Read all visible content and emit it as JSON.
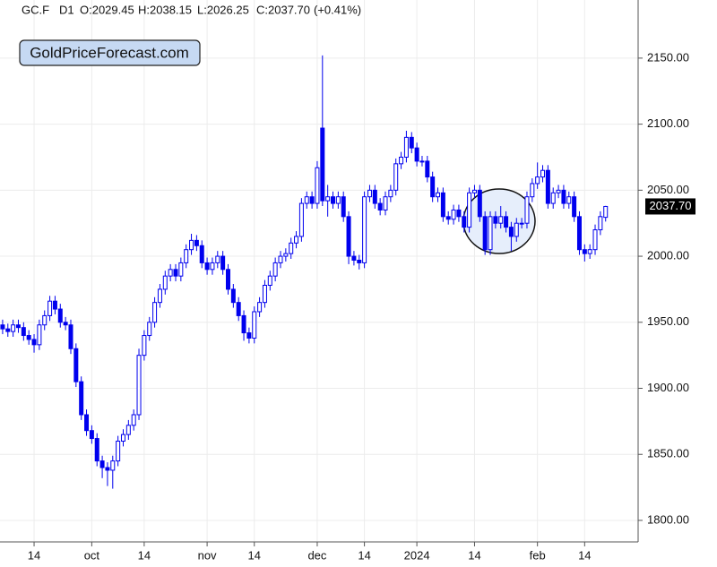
{
  "chart_data": {
    "type": "candlestick",
    "header": {
      "symbol": "GC.F",
      "timeframe": "D1",
      "open": "O:2029.45",
      "high": "H:2038.15",
      "low": "L:2026.25",
      "close": "C:2037.70",
      "change": "(+0.41%)"
    },
    "logo": "GoldPriceForecast.com",
    "last_price_label": "2037.70",
    "color": "#0000ee",
    "grid": true,
    "xlim": [
      -0.5,
      121.2
    ],
    "xticks": [
      {
        "value": 6,
        "label": "14"
      },
      {
        "value": 17,
        "label": "oct"
      },
      {
        "value": 27,
        "label": "14"
      },
      {
        "value": 39,
        "label": "nov"
      },
      {
        "value": 48,
        "label": "14"
      },
      {
        "value": 60,
        "label": "dec"
      },
      {
        "value": 69,
        "label": "14"
      },
      {
        "value": 79,
        "label": "2024"
      },
      {
        "value": 90,
        "label": "14"
      },
      {
        "value": 102,
        "label": "feb"
      },
      {
        "value": 111,
        "label": "14"
      }
    ],
    "ylim": [
      1783.7,
      2194
    ],
    "yticks": [
      {
        "value": 1800,
        "label": "1800.00"
      },
      {
        "value": 1850,
        "label": "1850.00"
      },
      {
        "value": 1900,
        "label": "1900.00"
      },
      {
        "value": 1950,
        "label": "1950.00"
      },
      {
        "value": 2000,
        "label": "2000.00"
      },
      {
        "value": 2050,
        "label": "2050.00"
      },
      {
        "value": 2100,
        "label": "2100.00"
      },
      {
        "value": 2150,
        "label": "2150.00"
      }
    ],
    "open": [
      1948,
      1945,
      1943,
      1948,
      1946,
      1940,
      1937,
      1933,
      1948,
      1955,
      1966,
      1960,
      1950,
      1948,
      1930,
      1905,
      1880,
      1868,
      1862,
      1845,
      1840,
      1838,
      1845,
      1860,
      1865,
      1872,
      1880,
      1925,
      1940,
      1950,
      1965,
      1975,
      1985,
      1990,
      1985,
      1995,
      2005,
      2012,
      2008,
      1995,
      1990,
      1995,
      2000,
      1990,
      1975,
      1965,
      1955,
      1942,
      1938,
      1958,
      1965,
      1978,
      1985,
      1995,
      2000,
      2002,
      2010,
      2015,
      2040,
      2045,
      2040,
      2097,
      2042,
      2045,
      2040,
      2045,
      2030,
      2000,
      1997,
      1995,
      2045,
      2050,
      2040,
      2035,
      2045,
      2050,
      2070,
      2075,
      2090,
      2082,
      2072,
      2072,
      2060,
      2045,
      2048,
      2030,
      2028,
      2035,
      2030,
      2022,
      2048,
      2050,
      2030,
      2005,
      2030,
      2025,
      2030,
      2022,
      2015,
      2025,
      2025,
      2045,
      2055,
      2060,
      2065,
      2040,
      2048,
      2050,
      2040,
      2045,
      2030,
      2005,
      2002,
      2005,
      2020,
      2029.45
    ],
    "high": [
      1952,
      1949,
      1952,
      1952,
      1950,
      1944,
      1941,
      1952,
      1959,
      1970,
      1970,
      1964,
      1954,
      1952,
      1934,
      1909,
      1884,
      1872,
      1866,
      1849,
      1844,
      1849,
      1864,
      1869,
      1876,
      1884,
      1930,
      1944,
      1954,
      1969,
      1979,
      1989,
      1994,
      1994,
      1999,
      2009,
      2017,
      2016,
      2012,
      1999,
      1999,
      2004,
      2004,
      1994,
      1979,
      1969,
      1959,
      1946,
      1962,
      1969,
      1982,
      1989,
      1999,
      2004,
      2006,
      2014,
      2019,
      2044,
      2049,
      2049,
      2072,
      2152,
      2054,
      2049,
      2049,
      2049,
      2034,
      2004,
      2001,
      2049,
      2054,
      2054,
      2044,
      2049,
      2054,
      2074,
      2079,
      2095,
      2094,
      2086,
      2076,
      2076,
      2064,
      2052,
      2052,
      2034,
      2039,
      2039,
      2034,
      2052,
      2054,
      2054,
      2034,
      2034,
      2034,
      2038,
      2034,
      2026,
      2029,
      2029,
      2049,
      2059,
      2071,
      2069,
      2069,
      2052,
      2054,
      2054,
      2049,
      2049,
      2034,
      2009,
      2009,
      2024,
      2034,
      2038.15
    ],
    "low": [
      1941,
      1939,
      1939,
      1942,
      1936,
      1933,
      1927,
      1929,
      1944,
      1951,
      1956,
      1946,
      1944,
      1926,
      1901,
      1876,
      1864,
      1858,
      1841,
      1832,
      1826,
      1824,
      1841,
      1856,
      1861,
      1868,
      1876,
      1921,
      1936,
      1946,
      1961,
      1971,
      1981,
      1981,
      1981,
      1991,
      2001,
      2004,
      1991,
      1986,
      1986,
      1991,
      1986,
      1971,
      1961,
      1951,
      1936,
      1934,
      1934,
      1954,
      1961,
      1974,
      1981,
      1991,
      1996,
      1998,
      2006,
      2011,
      2036,
      2036,
      2036,
      2038,
      2030,
      2036,
      2036,
      2026,
      1994,
      1993,
      1990,
      1991,
      2041,
      2036,
      2031,
      2031,
      2041,
      2046,
      2066,
      2071,
      2078,
      2068,
      2068,
      2056,
      2041,
      2041,
      2026,
      2024,
      2024,
      2026,
      2018,
      2018,
      2044,
      2026,
      2001,
      2001,
      2021,
      2021,
      2018,
      2004,
      2011,
      2021,
      2021,
      2041,
      2051,
      2056,
      2036,
      2036,
      2044,
      2036,
      2036,
      2026,
      2001,
      1996,
      1998,
      2001,
      2016,
      2026.25
    ],
    "close": [
      1945,
      1943,
      1948,
      1946,
      1940,
      1937,
      1933,
      1948,
      1955,
      1966,
      1960,
      1950,
      1948,
      1930,
      1905,
      1880,
      1868,
      1862,
      1845,
      1840,
      1838,
      1845,
      1860,
      1865,
      1872,
      1880,
      1925,
      1940,
      1950,
      1965,
      1975,
      1985,
      1990,
      1985,
      1995,
      2005,
      2012,
      2008,
      1995,
      1990,
      1995,
      2000,
      1990,
      1975,
      1965,
      1955,
      1942,
      1938,
      1958,
      1965,
      1978,
      1985,
      1995,
      2000,
      2002,
      2010,
      2015,
      2040,
      2045,
      2040,
      2067,
      2042,
      2045,
      2040,
      2045,
      2030,
      2000,
      1997,
      1995,
      2045,
      2050,
      2040,
      2035,
      2045,
      2050,
      2070,
      2075,
      2090,
      2082,
      2072,
      2072,
      2060,
      2045,
      2048,
      2030,
      2028,
      2035,
      2030,
      2022,
      2048,
      2050,
      2030,
      2005,
      2030,
      2025,
      2030,
      2022,
      2015,
      2025,
      2025,
      2045,
      2055,
      2060,
      2065,
      2040,
      2048,
      2050,
      2040,
      2045,
      2030,
      2005,
      2002,
      2005,
      2020,
      2030,
      2037.7
    ]
  }
}
